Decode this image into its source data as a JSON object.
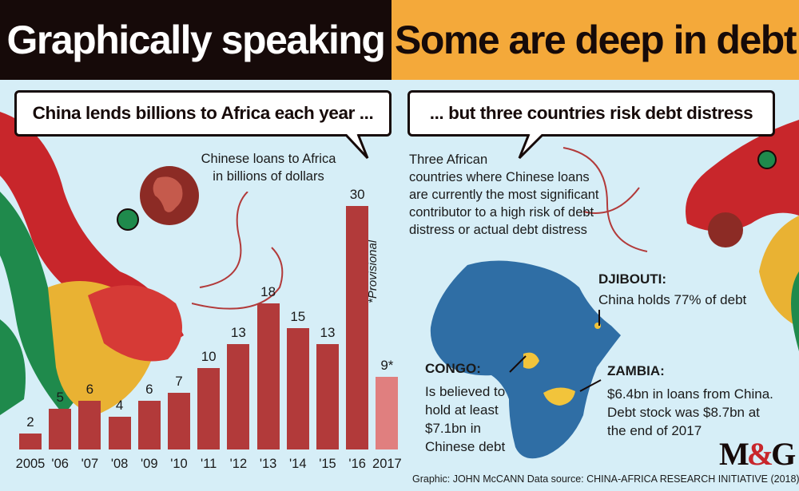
{
  "header": {
    "left_title": "Graphically speaking",
    "right_title": "Some are deep in debt"
  },
  "left_bubble": "China lends billions to Africa each year ...",
  "right_bubble": "... but three countries risk debt distress",
  "chart_caption": [
    "Chinese loans to Africa",
    "in billions of dollars"
  ],
  "provisional_note": "*Provisional",
  "right_description": [
    "Three African",
    "countries where Chinese loans",
    "are currently the most significant",
    "contributor to a high risk of debt",
    "distress or actual debt distress"
  ],
  "countries": {
    "djibouti": {
      "title": "DJIBOUTI:",
      "lines": [
        "China holds 77% of debt"
      ]
    },
    "congo": {
      "title": "CONGO:",
      "lines": [
        "Is believed to",
        "hold at least",
        "$7.1bn in",
        "Chinese debt"
      ]
    },
    "zambia": {
      "title": "ZAMBIA:",
      "lines": [
        "$6.4bn in loans from China.",
        "Debt stock was $8.7bn at",
        "the end of 2017"
      ]
    }
  },
  "logo": {
    "m": "M",
    "amp": "&",
    "g": "G"
  },
  "footer": "Graphic: JOHN McCANN  Data source: CHINA-AFRICA RESEARCH INITIATIVE (2018)",
  "colors": {
    "bar": "#b23a3a",
    "bar_provisional": "#e07f7f",
    "map": "#2f6ea5",
    "highlight": "#f2c43b",
    "header_dark": "#160a09",
    "header_orange": "#f4a93a",
    "dragon": "#c8262b"
  },
  "chart_data": {
    "type": "bar",
    "title": "Chinese loans to Africa in billions of dollars",
    "categories": [
      "2005",
      "'06",
      "'07",
      "'08",
      "'09",
      "'10",
      "'11",
      "'12",
      "'13",
      "'14",
      "'15",
      "'16",
      "2017"
    ],
    "values": [
      2,
      5,
      6,
      4,
      6,
      7,
      10,
      13,
      18,
      15,
      13,
      30,
      9
    ],
    "value_labels": [
      "2",
      "5",
      "6",
      "4",
      "6",
      "7",
      "10",
      "13",
      "18",
      "15",
      "13",
      "30",
      "9*"
    ],
    "provisional": [
      false,
      false,
      false,
      false,
      false,
      false,
      false,
      false,
      false,
      false,
      false,
      false,
      true
    ],
    "xlabel": "",
    "ylabel": "",
    "ylim": [
      0,
      30
    ]
  }
}
